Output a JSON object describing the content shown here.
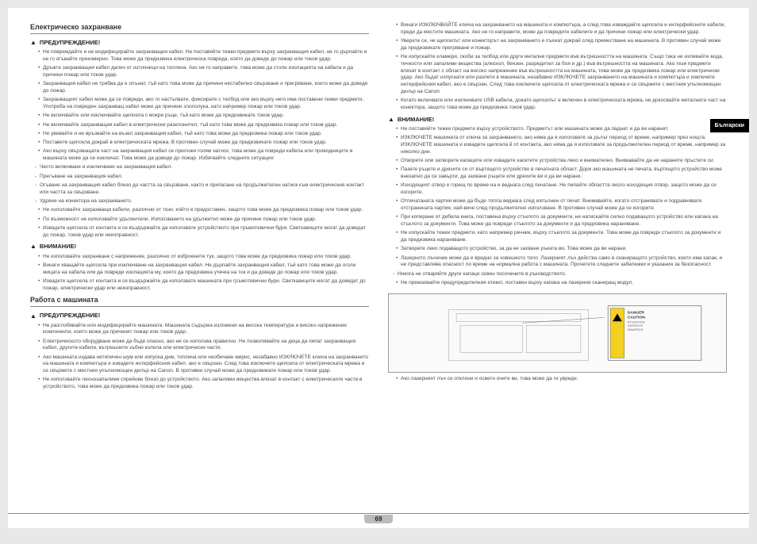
{
  "page_number": "69",
  "side_tab": "Български",
  "left": {
    "sec1_title": "Електрическо захранване",
    "warn1": "ПРЕДУПРЕЖДЕНИЕ!",
    "s1w1_items": [
      "Не повреждайте и не модифицирайте захранващия кабел. Не поставяйте тежки предмети върху захранващия кабел, не го дърпайте и не го огъвайте прекомерно. Това може да предизвика електрическа повреда, което да доведе до пожар или токов удар.",
      "Дръжте захранващия кабел далеч от източници на топлина. Ако не го направите, това може да стопи изолацията на кабела и да причини пожар или токов удар.",
      "Захранващия кабел не трябва да е опънат, тъй като това може да причини нестабилно свързване и прегряване, което може да доведе до пожар.",
      "Захранващият кабел може да се повреди, ако го настъпвате, фиксирате с телбод или ако върху него има поставени тежки предмети. Употреба на повреден захранващ кабел може да причини злополука, като например пожар или токов удар.",
      "Не включвайте или изключвайте щепсела с мокри ръце, тъй като може да предизвикате токов удар.",
      "Не включвайте захранващия кабел в електрически разклонител, тъй като това може да предизвика пожар или токов удар.",
      "Не увивайте и не връзвайте на възел захранващия кабел, тъй като това може да предизвика пожар или токов удар.",
      "Поставете щепсела докрай в електрическата мрежа. В противен случай може да предизвикате пожар или токов удар.",
      "Ако върху свързващата част на захранващия кабел се приложи голям натиск, това може да повреди кабела или проводниците в машината може да се изключат. Това може да доведе до пожар. Избягвайте следните ситуации:"
    ],
    "s1w1_sub": [
      "Често включване и изключване на захранващия кабел.",
      "Прегъване на захранващия кабел.",
      "Огъване на захранващия кабел близо до частта за свързване, както и прилагане на продължителен натиск към електрическия контакт или частта за свързване.",
      "Удряне на конектора на захранването."
    ],
    "s1w1_items2": [
      "Не използвайте захранващи кабели, различни от този, който е предоставен, защото това може да предизвика пожар или токов удар.",
      "По възможност не използвайте удължители. Използването на удължител може да причини пожар или токов удар.",
      "Извадете щепсела от контакта и се въздържайте да използвате устройството при гръмотевични бури. Светкавиците могат да доведат до пожар, токов удар или неизправност."
    ],
    "warn2": "ВНИМАНИЕ!",
    "s1w2_items": [
      "Не използвайте захранване с напрежение, различно от изброените тук, защото това може да предизвика пожар или токов удар.",
      "Винаги хващайте щепсела при изключване на захранващия кабел. Не дърпайте захранващия кабел, тъй като това може да оголи жицата на кабела или да повреди изолацията му, което да предизвика утечка на ток и да доведе до пожар или токов удар.",
      "Извадете щепсела от контакта и се въздържайте да използвате машината при гръмотевични бури. Светкавиците могат да доведат до пожар, електрически удар или неизправност."
    ],
    "sec2_title": "Работа с машината",
    "warn3": "ПРЕДУПРЕЖДЕНИЕ!",
    "s2w1_items": [
      "Не разглобявайте или модифицирайте машината. Машината съдържа изложени на висока температура и високо напрежение компоненти, които може да причинят пожар или токов удар.",
      "Електрическото оборудване може да бъде опасно, ако не се използва правилно. Не позволявайте на деца да пипат захранващия кабел, другите кабели, вътрешните зъбни колела или електрически части.",
      "Ако машината издава нетипичен шум или изпуска дим, топлина или необичаен мирис, незабавно ИЗКЛЮЧЕТЕ ключа на захранването на машината и компютъра и извадете интерфейсния кабел, ако е свързан. След това изключете щепсела от електрическата мрежа и се свържете с местния упълномощен дилър на Canon. В противен случай може да предизвикате пожар или токов удар.",
      "Не използвайте леснозапалими спрейове близо до устройството. Ако запалими вещества влязат в контакт с електрическите части в устройството, това може да предизвика пожар или токов удар."
    ]
  },
  "right": {
    "r1_items": [
      "Винаги ИЗКЛЮЧВАЙТЕ ключа на захранването на машината и компютъра, а след това изваждайте щепсела и интерфейсните кабели, преди да местите машината. Ако не го направите, може да повредите кабелите и да причини пожар или електрически удар.",
      "Уверете се, че щепселът или конекторът на захранването е пъхнат докрай след преместване на машината. В противен случай може да предизвикате прегряване и пожар.",
      "Не изпускайте кламери, скоби за телбод или други метални предмети във вътрешността на машината. Също така не изливайте вода, течности или запалими вещества (алкохол, бензен, разредител за боя и др.) във вътрешността на машината. Ако тези предмети влязат в контакт с област на високо напрежение във вътрешността на машината, това може да предизвика пожар или електрически удар. Ако бъдат изпуснати или разлети в машината, незабавно ИЗКЛЮЧЕТЕ захранването на машината и компютъра и извлечете интерфейсния кабел, ако е свързан. След това изключете щепсела от електрическата мрежа и се свържете с местния упълномощен дилър на Canon.",
      "Когато включвате или изключвате USB кабела, докато щепселът е включен в електрическата мрежа, не докосвайте металната част на конектора, защото това може да предизвика токов удар."
    ],
    "warn_r1": "ВНИМАНИЕ!",
    "r2_items": [
      "Не поставяйте тежки предмети върху устройството. Предметът или машината може да паднат и да ви наранят.",
      "ИЗКЛЮЧЕТЕ машината от ключа за захранването, ако няма да я използвате за дълъг период от време, например през нощта. ИЗКЛЮЧЕТЕ машината и извадете щепсела й от контакта, ако няма да я използвате за продължителен период от време, например за няколко дни.",
      "Отворете или затворете капаците или извадете касетите устройства леко и внимателно. Внимавайте да не нараните пръстите си.",
      "Пазете ръцете и дрехите си от въртящото устройство в печатната област. Дори ако машината не печата, въртящото устройство може внезапно да се завърти, да захване ръцете или дрехите ви и да ви нарани.",
      "Изходящият отвор е горещ по време на и веднага след печатане. Не пипайте областта около изходящия отвор, защото може да се изгорите.",
      "Отпечатаната хартия може да бъде топла веднага след изпълнен от печат. Внимавайте, когато отстранявате и подравнявате отстранената хартия, най-вече след продължително използване. В противен случай може да се изгорите.",
      "При копиране от дебела книга, поставена върху стъклото за документи, не натискайте силно подаващото устройство или капака на стъклото за документи. Това може да повреди стъклото за документи и да предизвика нараняване.",
      "Не изпускайте тежки предмети, като например речник, върху стъклото за документи. Това може да повреди стъклото за документи и да предизвика нараняване.",
      "Затворете леко подаващото устройство, за да не захване ръката ви. Това може да ви нарани.",
      "Лазерното лъчение може да е вредно за човешкото тяло. Лазерният лъч действа само в сканиращото устройство, което има капак, и не представлява опасност по време на нормална работа с машината. Прочетете следните забележки и указания за безопасност."
    ],
    "r2_sub": [
      "Никога не отваряйте други капаци освен посочените в ръководството."
    ],
    "r2_items2": [
      "Не премахвайте предупредителния етикет, поставен върху капака на лазерния сканиращ модул."
    ],
    "fig_caption": "Ако лазерният лъч се отклони и освети очите ви, това може да ги увреди."
  }
}
